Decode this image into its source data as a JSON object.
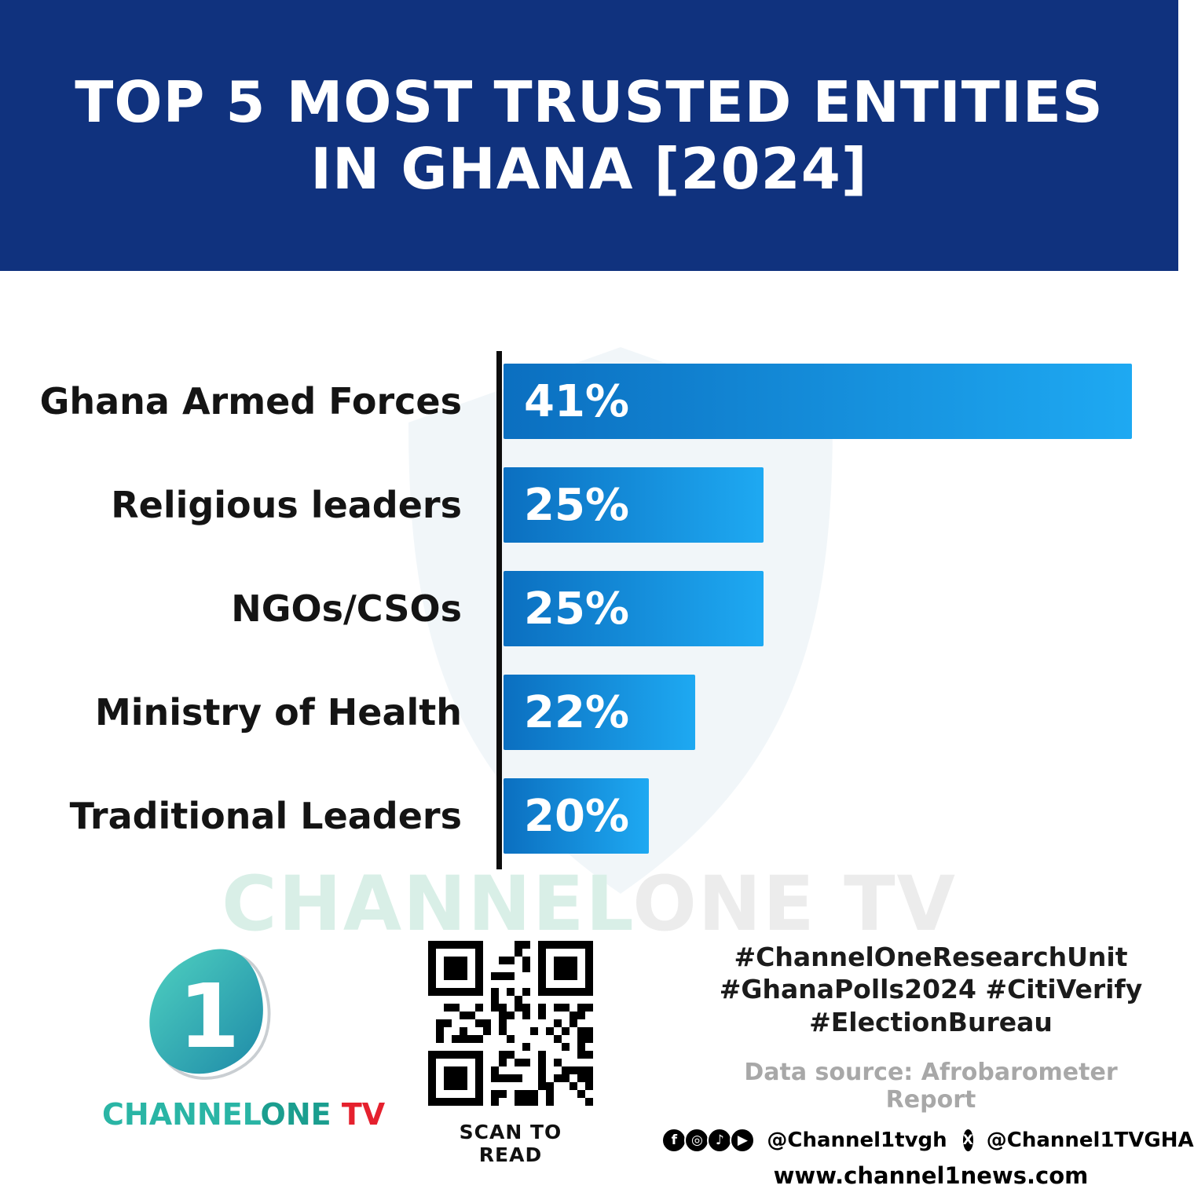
{
  "header": {
    "title_line1": "TOP 5 MOST TRUSTED ENTITIES",
    "title_line2": "IN GHANA [2024]"
  },
  "chart_data": {
    "type": "bar",
    "orientation": "horizontal",
    "title": "Top 5 Most Trusted Entities in Ghana [2024]",
    "categories": [
      "Ghana Armed Forces",
      "Religious leaders",
      "NGOs/CSOs",
      "Ministry of Health",
      "Traditional Leaders"
    ],
    "values": [
      41,
      25,
      25,
      22,
      20
    ],
    "value_labels": [
      "41%",
      "25%",
      "25%",
      "22%",
      "20%"
    ],
    "xlabel": "",
    "ylabel": "",
    "legend": "none",
    "grid": "off"
  },
  "watermark": {
    "part1": "CHANNEL",
    "part2": "ONE TV"
  },
  "footer": {
    "brand": {
      "channel": "CHANNEL",
      "one": "ONE",
      "tv": " TV",
      "logo_digit": "1"
    },
    "qr_caption": "SCAN TO READ",
    "hashtags": [
      "#ChannelOneResearchUnit",
      "#GhanaPolls2024 #CitiVerify",
      "#ElectionBureau"
    ],
    "data_source": "Data source: Afrobarometer Report",
    "social_handle_1": "@Channel1tvgh",
    "social_handle_2": "@Channel1TVGHA",
    "website": "www.channel1news.com",
    "icon_glyphs": {
      "facebook": "f",
      "instagram": "◎",
      "tiktok": "♪",
      "youtube": "▶",
      "x": "X"
    }
  },
  "colors": {
    "header_bg": "#10327e",
    "bar_gradient_start": "#0b6fc0",
    "bar_gradient_end": "#1ea9f2",
    "axis": "#0d0d0d",
    "brand_teal": "#2ab5a5",
    "brand_red": "#e5212e",
    "muted_gray": "#a8a8a8"
  }
}
